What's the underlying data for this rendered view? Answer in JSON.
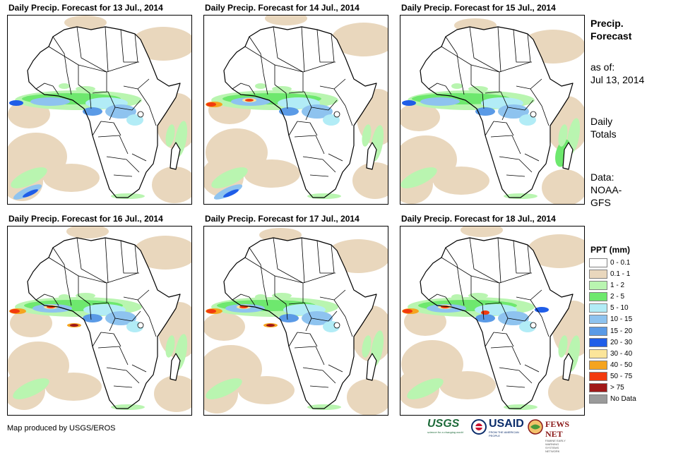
{
  "panels": [
    {
      "title": "Daily Precip. Forecast for 13 Jul., 2014"
    },
    {
      "title": "Daily Precip. Forecast for 14 Jul., 2014"
    },
    {
      "title": "Daily Precip. Forecast for 15 Jul., 2014"
    },
    {
      "title": "Daily Precip. Forecast for 16 Jul., 2014"
    },
    {
      "title": "Daily Precip. Forecast for 17 Jul., 2014"
    },
    {
      "title": "Daily Precip. Forecast for 18 Jul., 2014"
    }
  ],
  "sidebar": {
    "title_line1": "Precip.",
    "title_line2": "Forecast",
    "asof_line1": "as of:",
    "asof_line2": "Jul 13, 2014",
    "totals_line1": "Daily",
    "totals_line2": "Totals",
    "data_line1": "Data:",
    "data_line2": "NOAA-",
    "data_line3": "GFS"
  },
  "legend": {
    "title": "PPT (mm)",
    "items": [
      {
        "label": "0 - 0.1",
        "color": "#ffffff"
      },
      {
        "label": "0.1 - 1",
        "color": "#e9d7bd"
      },
      {
        "label": "1 - 2",
        "color": "#b9f5b0"
      },
      {
        "label": "2 - 5",
        "color": "#6ee86e"
      },
      {
        "label": "5 - 10",
        "color": "#b2ecf6"
      },
      {
        "label": "10 - 15",
        "color": "#8ec3ef"
      },
      {
        "label": "15 - 20",
        "color": "#5a9ae6"
      },
      {
        "label": "20 - 30",
        "color": "#1f5de8"
      },
      {
        "label": "30 - 40",
        "color": "#fbe59a"
      },
      {
        "label": "40 - 50",
        "color": "#f5a41f"
      },
      {
        "label": "50 - 75",
        "color": "#f23a0e"
      },
      {
        "label": "> 75",
        "color": "#a01818"
      },
      {
        "label": "No Data",
        "color": "#9a9a9a"
      }
    ]
  },
  "footer": {
    "credit": "Map produced by USGS/EROS",
    "usgs": "USGS",
    "usgs_tagline": "science for a changing world",
    "usaid": "USAID",
    "usaid_tagline": "FROM THE AMERICAN PEOPLE",
    "fews": "FEWS NET",
    "fews_tagline": "FAMINE EARLY WARNING SYSTEMS NETWORK"
  }
}
